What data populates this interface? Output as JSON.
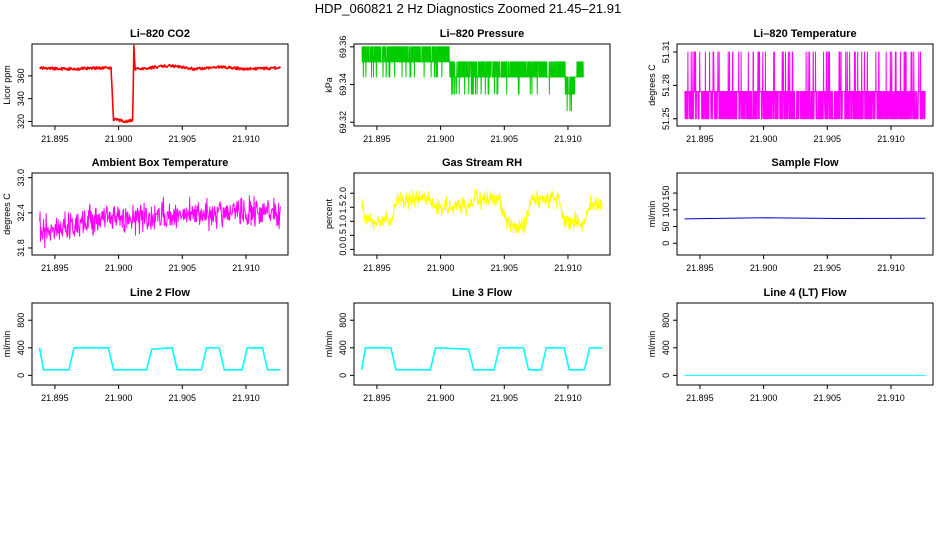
{
  "figure_title": "HDP_060821  2 Hz Diagnostics Zoomed 21.45–21.91",
  "colors": {
    "red": "#ff0000",
    "green": "#00cc00",
    "magenta": "#ff00ff",
    "yellow": "#ffff00",
    "blue": "#0000cc",
    "cyan": "#00ffff",
    "axis": "#000000"
  },
  "chart_data": [
    {
      "type": "line",
      "title": "Li–820 CO2",
      "xlabel": "",
      "ylabel": "Licor ppm",
      "xlim": [
        21.8932,
        21.9133
      ],
      "ylim": [
        316,
        388
      ],
      "xticks": [
        21.895,
        21.9,
        21.905,
        21.91
      ],
      "xtick_labels": [
        "21.895",
        "21.900",
        "21.905",
        "21.910"
      ],
      "yticks": [
        320,
        340,
        360
      ],
      "ytick_labels": [
        "320",
        "340",
        "360"
      ],
      "color": "red",
      "style": "thick",
      "x": [
        21.8938,
        21.896,
        21.8985,
        21.8994,
        21.8996,
        21.9005,
        21.9011,
        21.9012,
        21.9013,
        21.9015,
        21.904,
        21.906,
        21.908,
        21.91,
        21.9127
      ],
      "series": [
        {
          "name": "CO2",
          "values": [
            367,
            366,
            367,
            367,
            322,
            320,
            321,
            386,
            366,
            366,
            369,
            366,
            368,
            366,
            367
          ]
        }
      ]
    },
    {
      "type": "line",
      "title": "Li–820 Pressure",
      "xlabel": "",
      "ylabel": "kPa",
      "xlim": [
        21.8932,
        21.9133
      ],
      "ylim": [
        69.318,
        69.3615
      ],
      "xticks": [
        21.895,
        21.9,
        21.905,
        21.91
      ],
      "xtick_labels": [
        "21.895",
        "21.900",
        "21.905",
        "21.910"
      ],
      "yticks": [
        69.32,
        69.34,
        69.36
      ],
      "ytick_labels": [
        "69.32",
        "69.34",
        "69.36"
      ],
      "color": "green",
      "style": "quantized",
      "levels": [
        69.326,
        69.335,
        69.344,
        69.352,
        69.36
      ],
      "points": 1100,
      "x": [
        21.8938,
        21.8942,
        21.8962,
        21.8982,
        21.899,
        21.9002,
        21.9012,
        21.9042,
        21.9052,
        21.9072,
        21.9092,
        21.9102,
        21.9112
      ],
      "series": [
        {
          "name": "Pressure",
          "values": [
            69.352,
            69.356,
            69.351,
            69.353,
            69.348,
            69.352,
            69.344,
            69.344,
            69.345,
            69.343,
            69.343,
            69.337,
            69.343
          ]
        }
      ]
    },
    {
      "type": "line",
      "title": "Li–820 Temperature",
      "xlabel": "",
      "ylabel": "degrees C",
      "xlim": [
        21.8932,
        21.9133
      ],
      "ylim": [
        51.2435,
        51.3172
      ],
      "xticks": [
        21.895,
        21.9,
        21.905,
        21.91
      ],
      "xtick_labels": [
        "21.895",
        "21.900",
        "21.905",
        "21.910"
      ],
      "yticks": [
        51.25,
        51.28,
        51.31
      ],
      "ytick_labels": [
        "51.25",
        "51.28",
        "51.31"
      ],
      "color": "magenta",
      "style": "quantized",
      "levels": [
        51.25,
        51.2745,
        51.31
      ],
      "points": 1100,
      "x": [
        21.8938,
        21.9127
      ],
      "series": [
        {
          "name": "Temperature",
          "values": [
            51.262,
            51.262
          ]
        }
      ]
    },
    {
      "type": "line",
      "title": "Ambient Box Temperature",
      "xlabel": "",
      "ylabel": "degrees C",
      "xlim": [
        21.8932,
        21.9133
      ],
      "ylim": [
        31.68,
        33.08
      ],
      "xticks": [
        21.895,
        21.9,
        21.905,
        21.91
      ],
      "xtick_labels": [
        "21.895",
        "21.900",
        "21.905",
        "21.910"
      ],
      "yticks": [
        31.8,
        32.4,
        33.0
      ],
      "ytick_labels": [
        "31.8",
        "32.4",
        "33.0"
      ],
      "color": "magenta",
      "style": "noise",
      "noise": 0.22,
      "points": 560,
      "x": [
        21.8938,
        21.897,
        21.9,
        21.904,
        21.908,
        21.9127
      ],
      "series": [
        {
          "name": "Box Temperature",
          "values": [
            32.1,
            32.2,
            32.3,
            32.35,
            32.4,
            32.4
          ]
        }
      ]
    },
    {
      "type": "line",
      "title": "Gas Stream RH",
      "xlabel": "",
      "ylabel": "percent",
      "xlim": [
        21.8932,
        21.9133
      ],
      "ylim": [
        -0.2,
        2.72
      ],
      "xticks": [
        21.895,
        21.9,
        21.905,
        21.91
      ],
      "xtick_labels": [
        "21.895",
        "21.900",
        "21.905",
        "21.910"
      ],
      "yticks": [
        0.0,
        0.5,
        1.0,
        1.5,
        2.0
      ],
      "ytick_labels": [
        "0.0",
        "0.5",
        "1.0",
        "1.5",
        "2.0"
      ],
      "color": "yellow",
      "style": "noise",
      "noise": 0.28,
      "points": 560,
      "x": [
        21.8938,
        21.8942,
        21.8962,
        21.8966,
        21.899,
        21.8996,
        21.9022,
        21.9026,
        21.9046,
        21.9052,
        21.9066,
        21.9072,
        21.9092,
        21.9098,
        21.9112,
        21.9118,
        21.9127
      ],
      "series": [
        {
          "name": "RH",
          "values": [
            1.8,
            1.0,
            1.0,
            1.8,
            1.8,
            1.5,
            1.5,
            1.8,
            1.8,
            0.9,
            0.9,
            1.8,
            1.8,
            1.0,
            1.0,
            1.6,
            1.6
          ]
        }
      ]
    },
    {
      "type": "line",
      "title": "Sample Flow",
      "xlabel": "",
      "ylabel": "ml/min",
      "xlim": [
        21.8932,
        21.9133
      ],
      "ylim": [
        -35,
        210
      ],
      "xticks": [
        21.895,
        21.9,
        21.905,
        21.91
      ],
      "xtick_labels": [
        "21.895",
        "21.900",
        "21.905",
        "21.910"
      ],
      "yticks": [
        0,
        50,
        100,
        150
      ],
      "ytick_labels": [
        "0",
        "50",
        "100",
        "150"
      ],
      "color": "blue",
      "style": "thin",
      "x": [
        21.8938,
        21.9,
        21.906,
        21.9127
      ],
      "series": [
        {
          "name": "Sample Flow",
          "values": [
            73,
            76,
            74,
            75
          ]
        }
      ]
    },
    {
      "type": "line",
      "title": "Line 2 Flow",
      "xlabel": "",
      "ylabel": "ml/min",
      "xlim": [
        21.8932,
        21.9133
      ],
      "ylim": [
        -140,
        1050
      ],
      "xticks": [
        21.895,
        21.9,
        21.905,
        21.91
      ],
      "xtick_labels": [
        "21.895",
        "21.900",
        "21.905",
        "21.910"
      ],
      "yticks": [
        0,
        400,
        800
      ],
      "ytick_labels": [
        "0",
        "400",
        "800"
      ],
      "color": "cyan",
      "style": "step",
      "x": [
        21.8938,
        21.8941,
        21.8961,
        21.8965,
        21.8992,
        21.8996,
        21.9022,
        21.9026,
        21.9042,
        21.9046,
        21.9065,
        21.9069,
        21.9079,
        21.9083,
        21.9097,
        21.9101,
        21.9113,
        21.9117,
        21.9127
      ],
      "series": [
        {
          "name": "Line 2",
          "values": [
            400,
            80,
            80,
            400,
            400,
            80,
            80,
            380,
            400,
            80,
            80,
            400,
            400,
            80,
            80,
            400,
            400,
            80,
            80
          ]
        }
      ]
    },
    {
      "type": "line",
      "title": "Line 3 Flow",
      "xlabel": "",
      "ylabel": "ml/min",
      "xlim": [
        21.8932,
        21.9133
      ],
      "ylim": [
        -140,
        1050
      ],
      "xticks": [
        21.895,
        21.9,
        21.905,
        21.91
      ],
      "xtick_labels": [
        "21.895",
        "21.900",
        "21.905",
        "21.910"
      ],
      "yticks": [
        0,
        400,
        800
      ],
      "ytick_labels": [
        "0",
        "400",
        "800"
      ],
      "color": "cyan",
      "style": "step",
      "x": [
        21.8938,
        21.8941,
        21.8961,
        21.8965,
        21.8992,
        21.8996,
        21.9022,
        21.9026,
        21.9042,
        21.9046,
        21.9065,
        21.9069,
        21.9079,
        21.9083,
        21.9097,
        21.9101,
        21.9113,
        21.9117,
        21.9127
      ],
      "series": [
        {
          "name": "Line 3",
          "values": [
            80,
            400,
            400,
            80,
            80,
            400,
            380,
            80,
            80,
            400,
            400,
            80,
            80,
            400,
            400,
            80,
            80,
            400,
            400
          ]
        }
      ]
    },
    {
      "type": "line",
      "title": "Line 4 (LT) Flow",
      "xlabel": "",
      "ylabel": "ml/min",
      "xlim": [
        21.8932,
        21.9133
      ],
      "ylim": [
        -140,
        1050
      ],
      "xticks": [
        21.895,
        21.9,
        21.905,
        21.91
      ],
      "xtick_labels": [
        "21.895",
        "21.900",
        "21.905",
        "21.910"
      ],
      "yticks": [
        0,
        400,
        800
      ],
      "ytick_labels": [
        "0",
        "400",
        "800"
      ],
      "color": "cyan",
      "style": "thin",
      "x": [
        21.8938,
        21.9127
      ],
      "series": [
        {
          "name": "Line 4",
          "values": [
            0,
            0
          ]
        }
      ]
    }
  ]
}
